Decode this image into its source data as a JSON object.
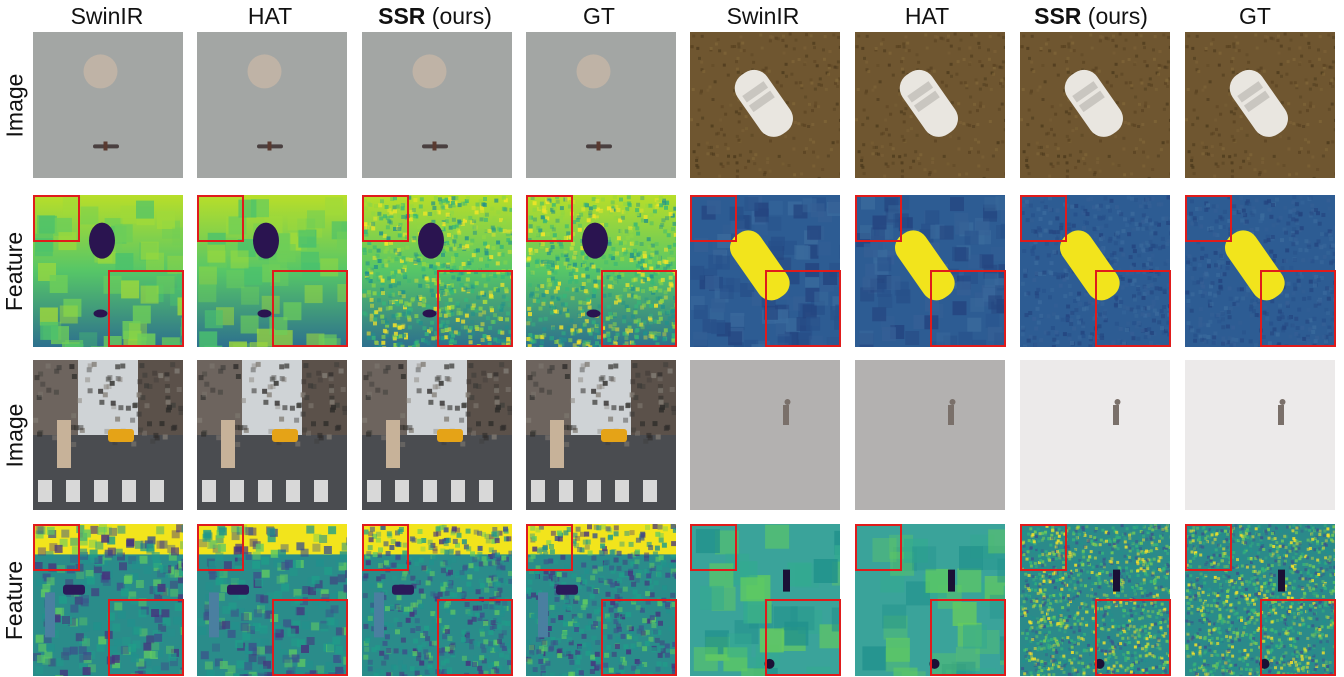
{
  "columns": [
    {
      "name": "SwinIR",
      "suffix": ""
    },
    {
      "name": "HAT",
      "suffix": ""
    },
    {
      "name": "SSR",
      "suffix": " (ours)"
    },
    {
      "name": "GT",
      "suffix": ""
    },
    {
      "name": "SwinIR",
      "suffix": ""
    },
    {
      "name": "HAT",
      "suffix": ""
    },
    {
      "name": "SSR",
      "suffix": " (ours)"
    },
    {
      "name": "GT",
      "suffix": ""
    }
  ],
  "rows": [
    {
      "label": "Image",
      "kind": "image"
    },
    {
      "label": "Feature",
      "kind": "feature"
    },
    {
      "label": "Image",
      "kind": "image"
    },
    {
      "label": "Feature",
      "kind": "feature"
    }
  ],
  "colors": {
    "zoom_border": "#e01b1b",
    "viridis_dark": "#3b1b6b",
    "viridis_mid": "#2a8c8a",
    "viridis_bright": "#f2e41c"
  }
}
